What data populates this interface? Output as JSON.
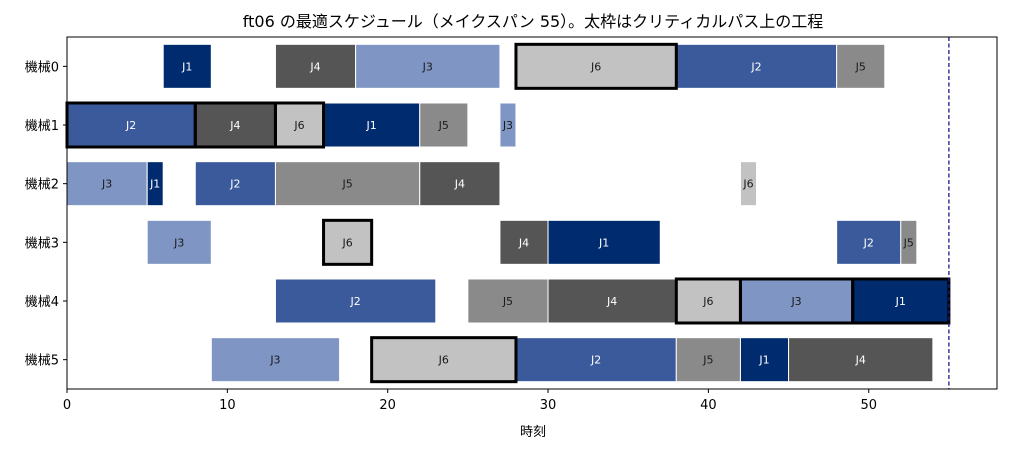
{
  "chart_data": {
    "type": "gantt",
    "title": "ft06 の最適スケジュール（メイクスパン 55）。太枠はクリティカルパス上の工程",
    "xlabel": "時刻",
    "ylabel": "",
    "xlim": [
      0,
      58
    ],
    "xticks": [
      0,
      10,
      20,
      30,
      40,
      50
    ],
    "machines": [
      "機械0",
      "機械1",
      "機械2",
      "機械3",
      "機械4",
      "機械5"
    ],
    "makespan": 55,
    "job_colors": {
      "J1": "#002b6e",
      "J2": "#3a5a9b",
      "J3": "#7f96c4",
      "J4": "#555555",
      "J5": "#8a8a8a",
      "J6": "#c2c2c2"
    },
    "job_label_colors": {
      "J1": "#ffffff",
      "J2": "#ffffff",
      "J3": "#1a1a1a",
      "J4": "#ffffff",
      "J5": "#1a1a1a",
      "J6": "#1a1a1a"
    },
    "makespan_line_color": "#1a1a8c",
    "operations": [
      {
        "machine": 0,
        "job": "J1",
        "start": 6,
        "end": 9,
        "critical": false
      },
      {
        "machine": 0,
        "job": "J4",
        "start": 13,
        "end": 18,
        "critical": false
      },
      {
        "machine": 0,
        "job": "J3",
        "start": 18,
        "end": 27,
        "critical": false
      },
      {
        "machine": 0,
        "job": "J6",
        "start": 28,
        "end": 38,
        "critical": true
      },
      {
        "machine": 0,
        "job": "J2",
        "start": 38,
        "end": 48,
        "critical": false
      },
      {
        "machine": 0,
        "job": "J5",
        "start": 48,
        "end": 51,
        "critical": false
      },
      {
        "machine": 1,
        "job": "J2",
        "start": 0,
        "end": 8,
        "critical": true
      },
      {
        "machine": 1,
        "job": "J4",
        "start": 8,
        "end": 13,
        "critical": true
      },
      {
        "machine": 1,
        "job": "J6",
        "start": 13,
        "end": 16,
        "critical": true
      },
      {
        "machine": 1,
        "job": "J1",
        "start": 16,
        "end": 22,
        "critical": false
      },
      {
        "machine": 1,
        "job": "J5",
        "start": 22,
        "end": 25,
        "critical": false
      },
      {
        "machine": 1,
        "job": "J3",
        "start": 27,
        "end": 28,
        "critical": false
      },
      {
        "machine": 2,
        "job": "J3",
        "start": 0,
        "end": 5,
        "critical": false
      },
      {
        "machine": 2,
        "job": "J1",
        "start": 5,
        "end": 6,
        "critical": false
      },
      {
        "machine": 2,
        "job": "J2",
        "start": 8,
        "end": 13,
        "critical": false
      },
      {
        "machine": 2,
        "job": "J5",
        "start": 13,
        "end": 22,
        "critical": false
      },
      {
        "machine": 2,
        "job": "J4",
        "start": 22,
        "end": 27,
        "critical": false
      },
      {
        "machine": 2,
        "job": "J6",
        "start": 42,
        "end": 43,
        "critical": false
      },
      {
        "machine": 3,
        "job": "J3",
        "start": 5,
        "end": 9,
        "critical": false
      },
      {
        "machine": 3,
        "job": "J6",
        "start": 16,
        "end": 19,
        "critical": true
      },
      {
        "machine": 3,
        "job": "J4",
        "start": 27,
        "end": 30,
        "critical": false
      },
      {
        "machine": 3,
        "job": "J1",
        "start": 30,
        "end": 37,
        "critical": false
      },
      {
        "machine": 3,
        "job": "J2",
        "start": 48,
        "end": 52,
        "critical": false
      },
      {
        "machine": 3,
        "job": "J5",
        "start": 52,
        "end": 53,
        "critical": false
      },
      {
        "machine": 4,
        "job": "J2",
        "start": 13,
        "end": 23,
        "critical": false
      },
      {
        "machine": 4,
        "job": "J5",
        "start": 25,
        "end": 30,
        "critical": false
      },
      {
        "machine": 4,
        "job": "J4",
        "start": 30,
        "end": 38,
        "critical": false
      },
      {
        "machine": 4,
        "job": "J6",
        "start": 38,
        "end": 42,
        "critical": true
      },
      {
        "machine": 4,
        "job": "J3",
        "start": 42,
        "end": 49,
        "critical": true
      },
      {
        "machine": 4,
        "job": "J1",
        "start": 49,
        "end": 55,
        "critical": true
      },
      {
        "machine": 5,
        "job": "J3",
        "start": 9,
        "end": 17,
        "critical": false
      },
      {
        "machine": 5,
        "job": "J6",
        "start": 19,
        "end": 28,
        "critical": true
      },
      {
        "machine": 5,
        "job": "J2",
        "start": 28,
        "end": 38,
        "critical": false
      },
      {
        "machine": 5,
        "job": "J5",
        "start": 38,
        "end": 42,
        "critical": false
      },
      {
        "machine": 5,
        "job": "J1",
        "start": 42,
        "end": 45,
        "critical": false
      },
      {
        "machine": 5,
        "job": "J4",
        "start": 45,
        "end": 54,
        "critical": false
      }
    ]
  }
}
